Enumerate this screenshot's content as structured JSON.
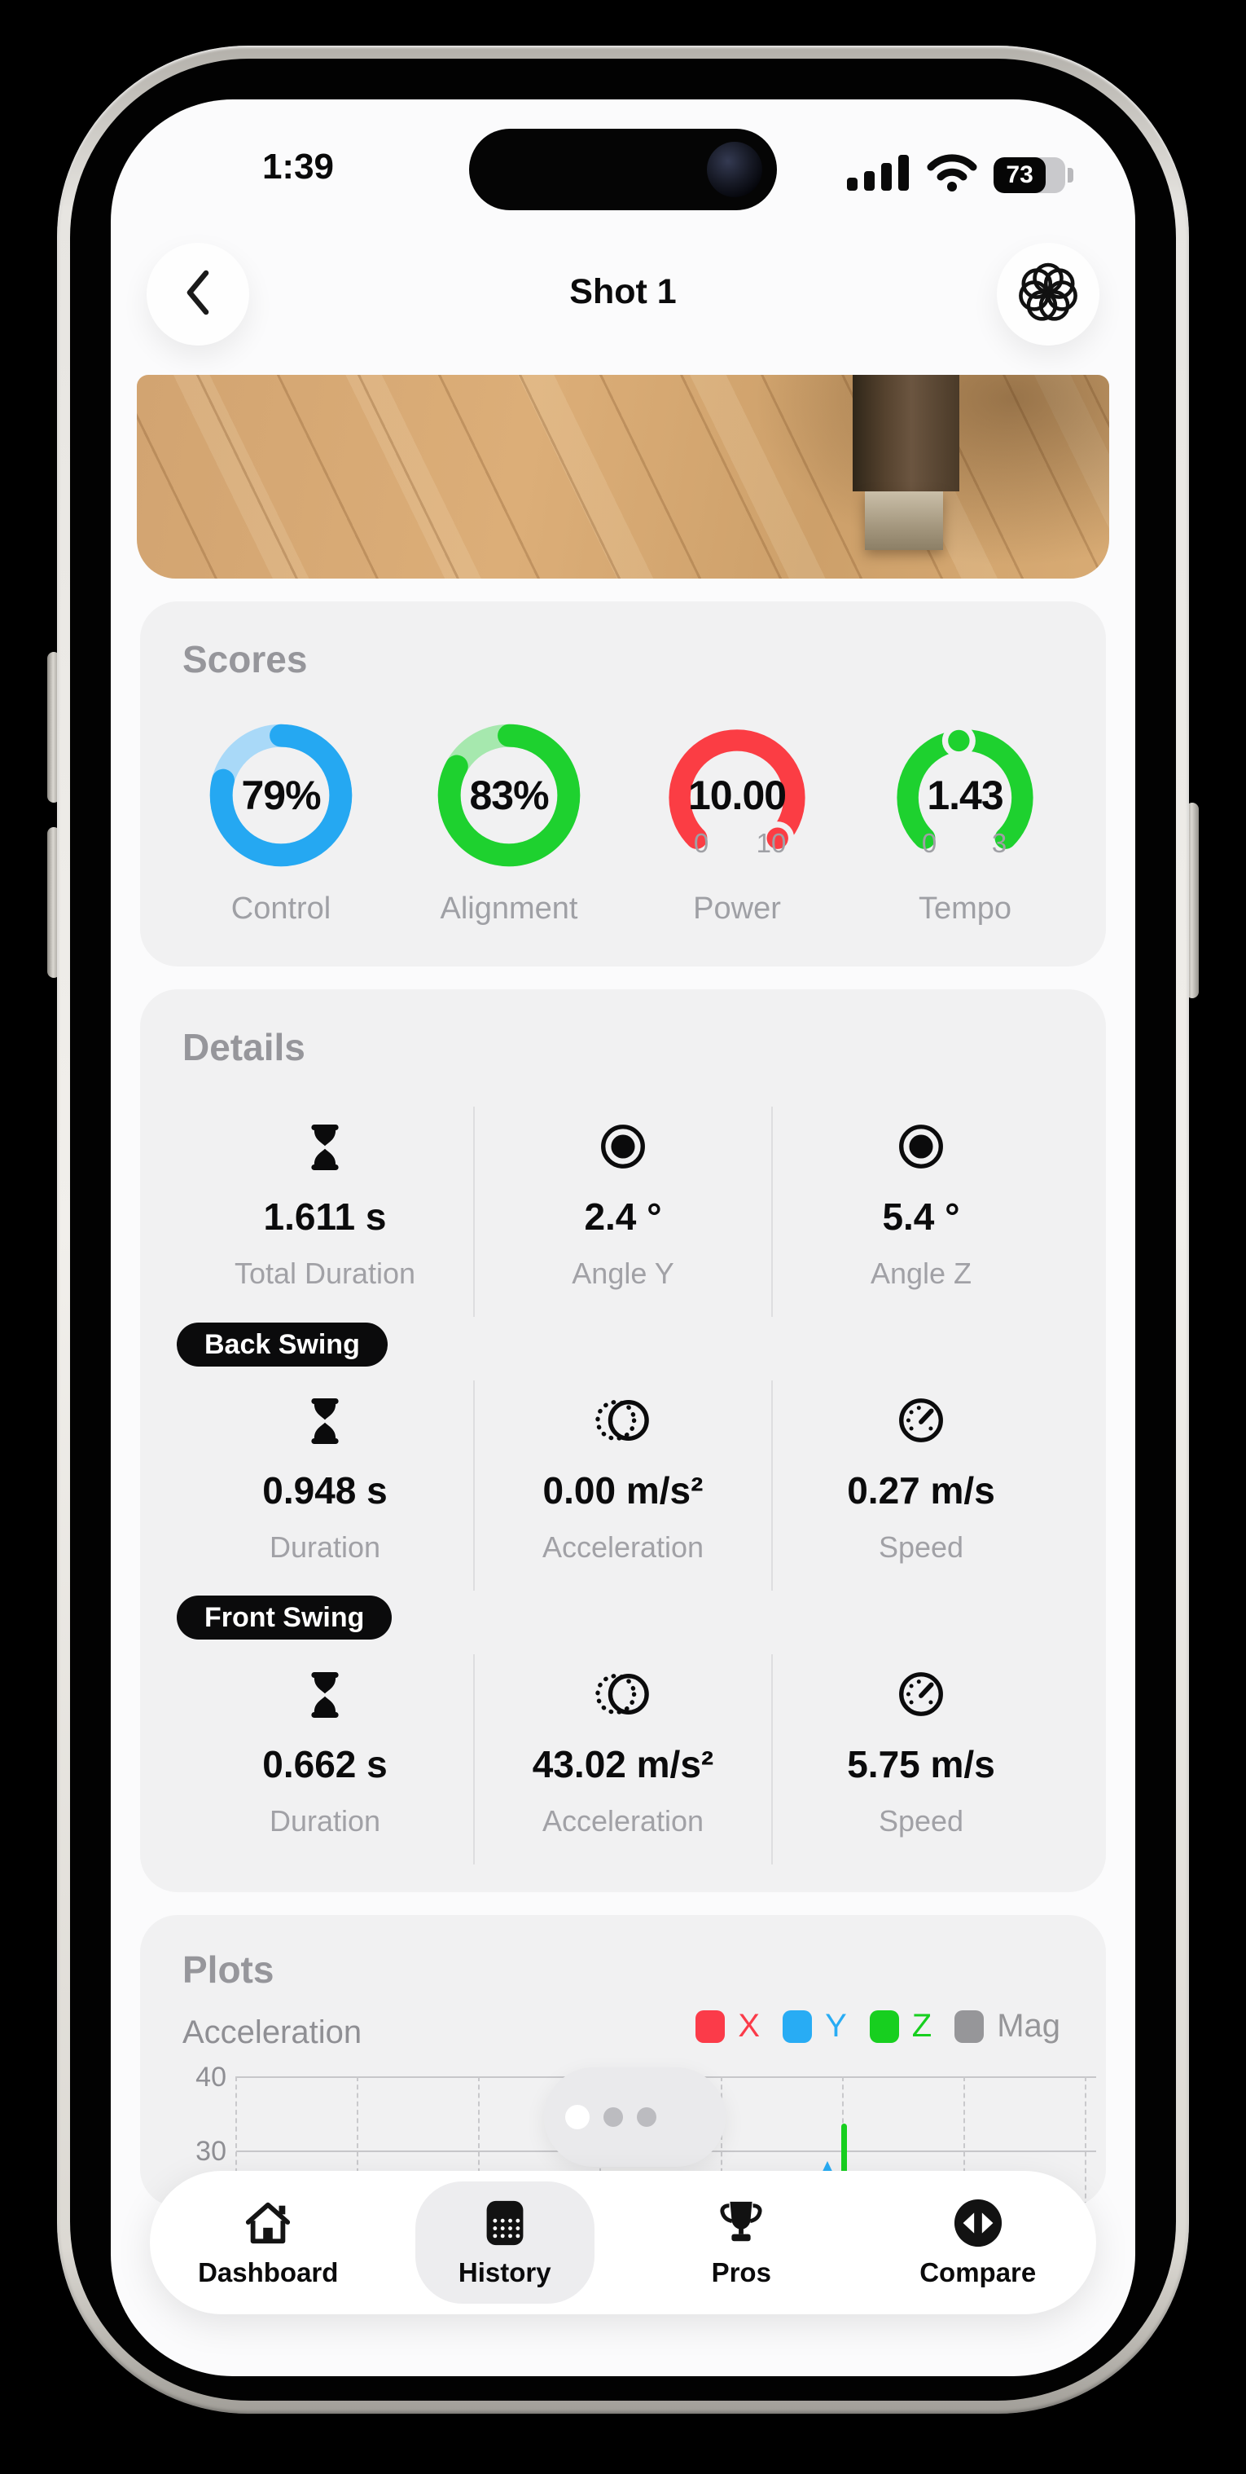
{
  "status_bar": {
    "time": "1:39",
    "battery_level": 73
  },
  "nav_bar": {
    "title": "Shot 1"
  },
  "photo": {
    "alt": "wooden floor with furniture leg"
  },
  "scores": {
    "title": "Scores",
    "gauges": [
      {
        "label": "Control",
        "value": "79%",
        "kind": "ring",
        "percent": 79,
        "color": "#25A8F2",
        "track_color": "#A9D9F8"
      },
      {
        "label": "Alignment",
        "value": "83%",
        "kind": "ring",
        "percent": 83,
        "color": "#1ED12F",
        "track_color": "#A6E8AE"
      },
      {
        "label": "Power",
        "value": "10.00",
        "kind": "dial",
        "fraction": 1,
        "min_label": "0",
        "max_label": "10",
        "color": "#FB3D44"
      },
      {
        "label": "Tempo",
        "value": "1.43",
        "kind": "dial",
        "fraction": 0.477,
        "min_label": "0",
        "max_label": "3",
        "color": "#1ED12F"
      }
    ]
  },
  "details": {
    "title": "Details",
    "rows": [
      {
        "badge": null,
        "cells": [
          {
            "icon": "hourglass",
            "value": "1.611 s",
            "label": "Total Duration"
          },
          {
            "icon": "angle-target",
            "value": "2.4 °",
            "label": "Angle Y"
          },
          {
            "icon": "angle-target",
            "value": "5.4 °",
            "label": "Angle Z"
          }
        ]
      },
      {
        "badge": "Back Swing",
        "cells": [
          {
            "icon": "hourglass",
            "value": "0.948 s",
            "label": "Duration"
          },
          {
            "icon": "acceleration",
            "value": "0.00 m/s²",
            "label": "Acceleration"
          },
          {
            "icon": "speedometer",
            "value": "0.27 m/s",
            "label": "Speed"
          }
        ]
      },
      {
        "badge": "Front Swing",
        "cells": [
          {
            "icon": "hourglass",
            "value": "0.662 s",
            "label": "Duration"
          },
          {
            "icon": "acceleration",
            "value": "43.02 m/s²",
            "label": "Acceleration"
          },
          {
            "icon": "speedometer",
            "value": "5.75 m/s",
            "label": "Speed"
          }
        ]
      }
    ]
  },
  "plots": {
    "title": "Plots",
    "pagination": {
      "count": 3,
      "active_index": 0
    }
  },
  "chart_data": {
    "type": "line",
    "title": "Acceleration",
    "y_axis_visible_ticks": [
      40,
      30
    ],
    "x_gridlines": 8,
    "grid_style": "vertical-dashed",
    "legend_position": "top-right",
    "legend": [
      {
        "name": "X",
        "color": "#FB3B49"
      },
      {
        "name": "Y",
        "color": "#28ACF4"
      },
      {
        "name": "Z",
        "color": "#17CF1F"
      },
      {
        "name": "Mag",
        "color": "#969699"
      }
    ],
    "visible_data": [
      {
        "series": "Y",
        "shape": "spike",
        "x_fraction": 0.697,
        "peak_value": 28.6
      },
      {
        "series": "Z",
        "shape": "spike",
        "x_fraction": 0.717,
        "peak_value": 33.6
      }
    ]
  },
  "tab_bar": {
    "items": [
      {
        "label": "Dashboard",
        "icon": "home",
        "selected": false
      },
      {
        "label": "History",
        "icon": "history-grid",
        "selected": true
      },
      {
        "label": "Pros",
        "icon": "trophy",
        "selected": false
      },
      {
        "label": "Compare",
        "icon": "compare-arrows",
        "selected": false
      }
    ]
  }
}
